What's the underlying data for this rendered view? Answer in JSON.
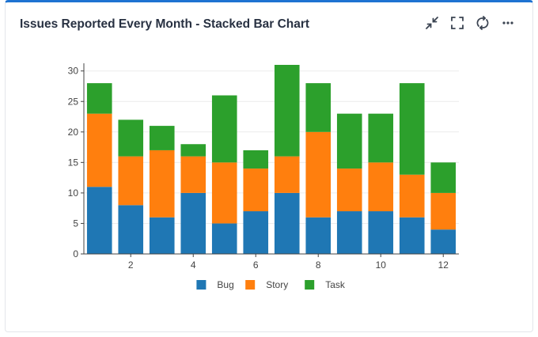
{
  "widget": {
    "title": "Issues Reported Every Month - Stacked Bar Chart",
    "icons": [
      "collapse-icon",
      "fullscreen-icon",
      "refresh-icon",
      "more-icon"
    ]
  },
  "colors": {
    "Bug": "#1f77b4",
    "Story": "#ff7f0e",
    "Task": "#2ca02c",
    "accent": "#1e73d2"
  },
  "chart_data": {
    "type": "bar",
    "stacked": true,
    "title": "",
    "xlabel": "",
    "ylabel": "",
    "categories": [
      1,
      2,
      3,
      4,
      5,
      6,
      7,
      8,
      9,
      10,
      11,
      12
    ],
    "xticks": [
      2,
      4,
      6,
      8,
      10,
      12
    ],
    "yticks": [
      0,
      5,
      10,
      15,
      20,
      25,
      30
    ],
    "ylim": [
      0,
      31
    ],
    "grid": true,
    "legend_position": "bottom",
    "series": [
      {
        "name": "Bug",
        "values": [
          11,
          8,
          6,
          10,
          5,
          7,
          10,
          6,
          7,
          7,
          6,
          4
        ]
      },
      {
        "name": "Story",
        "values": [
          12,
          8,
          11,
          6,
          10,
          7,
          6,
          14,
          7,
          8,
          7,
          6
        ]
      },
      {
        "name": "Task",
        "values": [
          5,
          6,
          4,
          2,
          11,
          3,
          15,
          8,
          9,
          8,
          15,
          5
        ]
      }
    ]
  }
}
